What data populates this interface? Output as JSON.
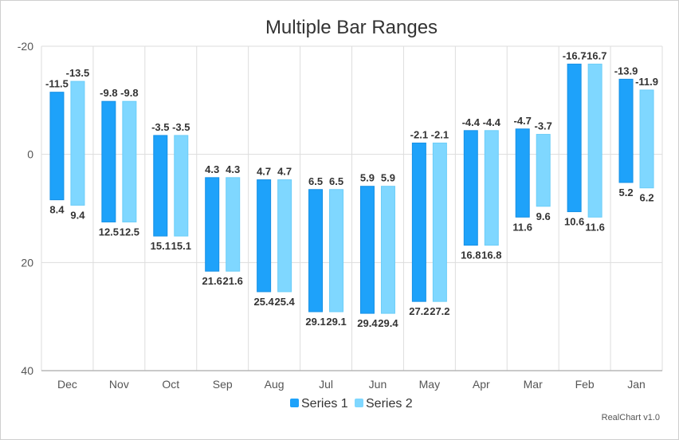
{
  "chart_data": {
    "type": "bar",
    "title": "Multiple Bar Ranges",
    "categories": [
      "Dec",
      "Nov",
      "Oct",
      "Sep",
      "Aug",
      "Jul",
      "Jun",
      "May",
      "Apr",
      "Mar",
      "Feb",
      "Jan"
    ],
    "series": [
      {
        "name": "Series 1",
        "color": "#1ea2fa",
        "low": [
          -11.5,
          -9.8,
          -3.5,
          4.3,
          4.7,
          6.5,
          5.9,
          -2.1,
          -4.4,
          -4.7,
          -16.7,
          -13.9
        ],
        "high": [
          8.4,
          12.5,
          15.1,
          21.6,
          25.4,
          29.1,
          29.4,
          27.2,
          16.8,
          11.6,
          10.6,
          5.2
        ]
      },
      {
        "name": "Series 2",
        "color": "#7fd7ff",
        "low": [
          -13.5,
          -9.8,
          -3.5,
          4.3,
          4.7,
          6.5,
          5.9,
          -2.1,
          -4.4,
          -3.7,
          -16.7,
          -11.9
        ],
        "high": [
          9.4,
          12.5,
          15.1,
          21.6,
          25.4,
          29.1,
          29.4,
          27.2,
          16.8,
          9.6,
          11.6,
          6.2
        ]
      }
    ],
    "yaxis": {
      "ticks": [
        -20,
        0,
        20,
        40
      ],
      "reversed": true,
      "ylim": [
        -20,
        40
      ]
    },
    "grid": true,
    "legend": "bottom",
    "credit": "RealChart v1.0"
  }
}
